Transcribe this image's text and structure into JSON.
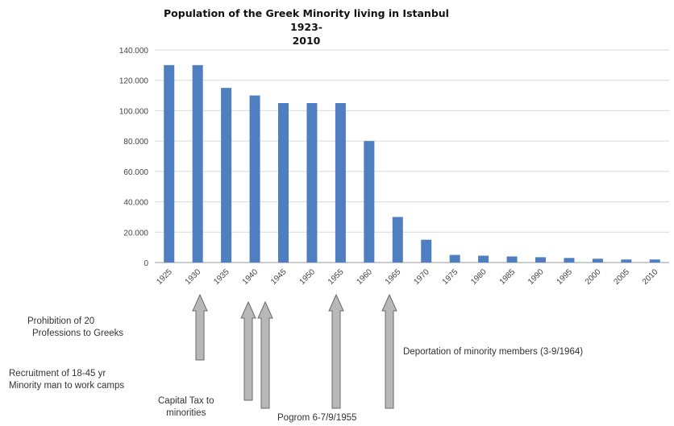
{
  "chart_data": {
    "type": "bar",
    "title": "Population of the Greek Minority living in Istanbul 1923-2010",
    "title_lines": [
      "Population of the Greek Minority living in Istanbul 1923-",
      "2010"
    ],
    "categories": [
      "1925",
      "1930",
      "1935",
      "1940",
      "1945",
      "1950",
      "1955",
      "1960",
      "1965",
      "1970",
      "1975",
      "1980",
      "1985",
      "1990",
      "1995",
      "2000",
      "2005",
      "2010"
    ],
    "values": [
      130000,
      130000,
      115000,
      110000,
      105000,
      105000,
      105000,
      80000,
      30000,
      15000,
      5000,
      4500,
      4000,
      3500,
      3000,
      2500,
      2000,
      2000
    ],
    "ylim": [
      0,
      140000
    ],
    "ytick_labels": [
      "0",
      "20.000",
      "40.000",
      "60.000",
      "80.000",
      "100.000",
      "120.000",
      "140.000"
    ],
    "bar_color": "#4f7fc1",
    "grid": true
  },
  "annotations": [
    {
      "id": "prohibition",
      "text_lines": [
        "Prohibition of 20",
        "Professions to Greeks"
      ],
      "points_to": "1930"
    },
    {
      "id": "recruitment",
      "text_lines": [
        "Recruitment of 18-45 yr",
        "Minority man to work camps"
      ],
      "points_to": "1940"
    },
    {
      "id": "capital-tax",
      "text_lines": [
        "Capital Tax to",
        "minorities"
      ],
      "points_to": "1940"
    },
    {
      "id": "pogrom",
      "text_lines": [
        "Pogrom 6-7/9/1955"
      ],
      "points_to": "1955"
    },
    {
      "id": "deportation",
      "text_lines": [
        "Deportation of minority members (3-9/1964)"
      ],
      "points_to": "1965"
    }
  ],
  "colors": {
    "arrow_fill": "#b8b8b8",
    "arrow_stroke": "#6a6a6a",
    "grid": "#d9d9d9"
  }
}
